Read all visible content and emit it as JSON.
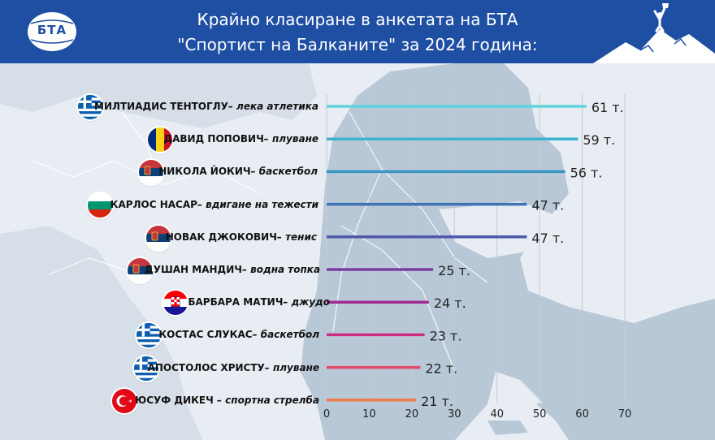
{
  "header": {
    "logo_text": "БТА",
    "title_line1": "Крайно класиране в анкетата на БТА",
    "title_line2": "\"Спортист на Балканите\" за 2024 година:"
  },
  "colors": {
    "header_bg": "#1f4fa3",
    "map_land": "#b9c8d7",
    "map_sea": "#e8edf3"
  },
  "chart_data": {
    "type": "bar",
    "orientation": "horizontal",
    "xlim": [
      0,
      70
    ],
    "x_ticks": [
      "0",
      "10",
      "20",
      "30",
      "40",
      "50",
      "60",
      "70"
    ],
    "grid": true,
    "categories": [
      {
        "name": "МИЛТИАДИС ТЕНТОГЛУ",
        "sport": "– лека атлетика",
        "value": 61,
        "value_label": "61 т.",
        "flag": "greece-flag-icon",
        "color": "#5fd4dd"
      },
      {
        "name": "ДАВИД ПОПОВИЧ",
        "sport": "– плуване",
        "value": 59,
        "value_label": "59 т.",
        "flag": "romania-flag-icon",
        "color": "#3cb3cf"
      },
      {
        "name": "НИКОЛА ЙОКИЧ",
        "sport": "– баскетбол",
        "value": 56,
        "value_label": "56 т.",
        "flag": "serbia-flag-icon",
        "color": "#3a95c4"
      },
      {
        "name": "КАРЛОС НАСАР",
        "sport": "– вдигане на тежести",
        "value": 47,
        "value_label": "47 т.",
        "flag": "bulgaria-flag-icon",
        "color": "#3f74b4"
      },
      {
        "name": "НОВАК ДЖОКОВИЧ",
        "sport": "– тенис",
        "value": 47,
        "value_label": "47 т.",
        "flag": "serbia-flag-icon",
        "color": "#4c58a9"
      },
      {
        "name": "ДУШАН МАНДИЧ",
        "sport": "– водна топка",
        "value": 25,
        "value_label": "25 т.",
        "flag": "serbia-flag-icon",
        "color": "#7a3da2"
      },
      {
        "name": "БАРБАРА МАТИЧ",
        "sport": "– джудо",
        "value": 24,
        "value_label": "24 т.",
        "flag": "croatia-flag-icon",
        "color": "#a22a8e"
      },
      {
        "name": "КОСТАС СЛУКАС",
        "sport": "– баскетбол",
        "value": 23,
        "value_label": "23 т.",
        "flag": "greece-flag-icon",
        "color": "#cc2d82"
      },
      {
        "name": "АПОСТОЛОС ХРИСТУ",
        "sport": "– плуване",
        "value": 22,
        "value_label": "22 т.",
        "flag": "greece-flag-icon",
        "color": "#e24a6c"
      },
      {
        "name": "ЮСУФ ДИКЕЧ",
        "sport": " – спортна стрелба",
        "value": 21,
        "value_label": "21 т.",
        "flag": "turkey-flag-icon",
        "color": "#ee7a45"
      }
    ]
  }
}
